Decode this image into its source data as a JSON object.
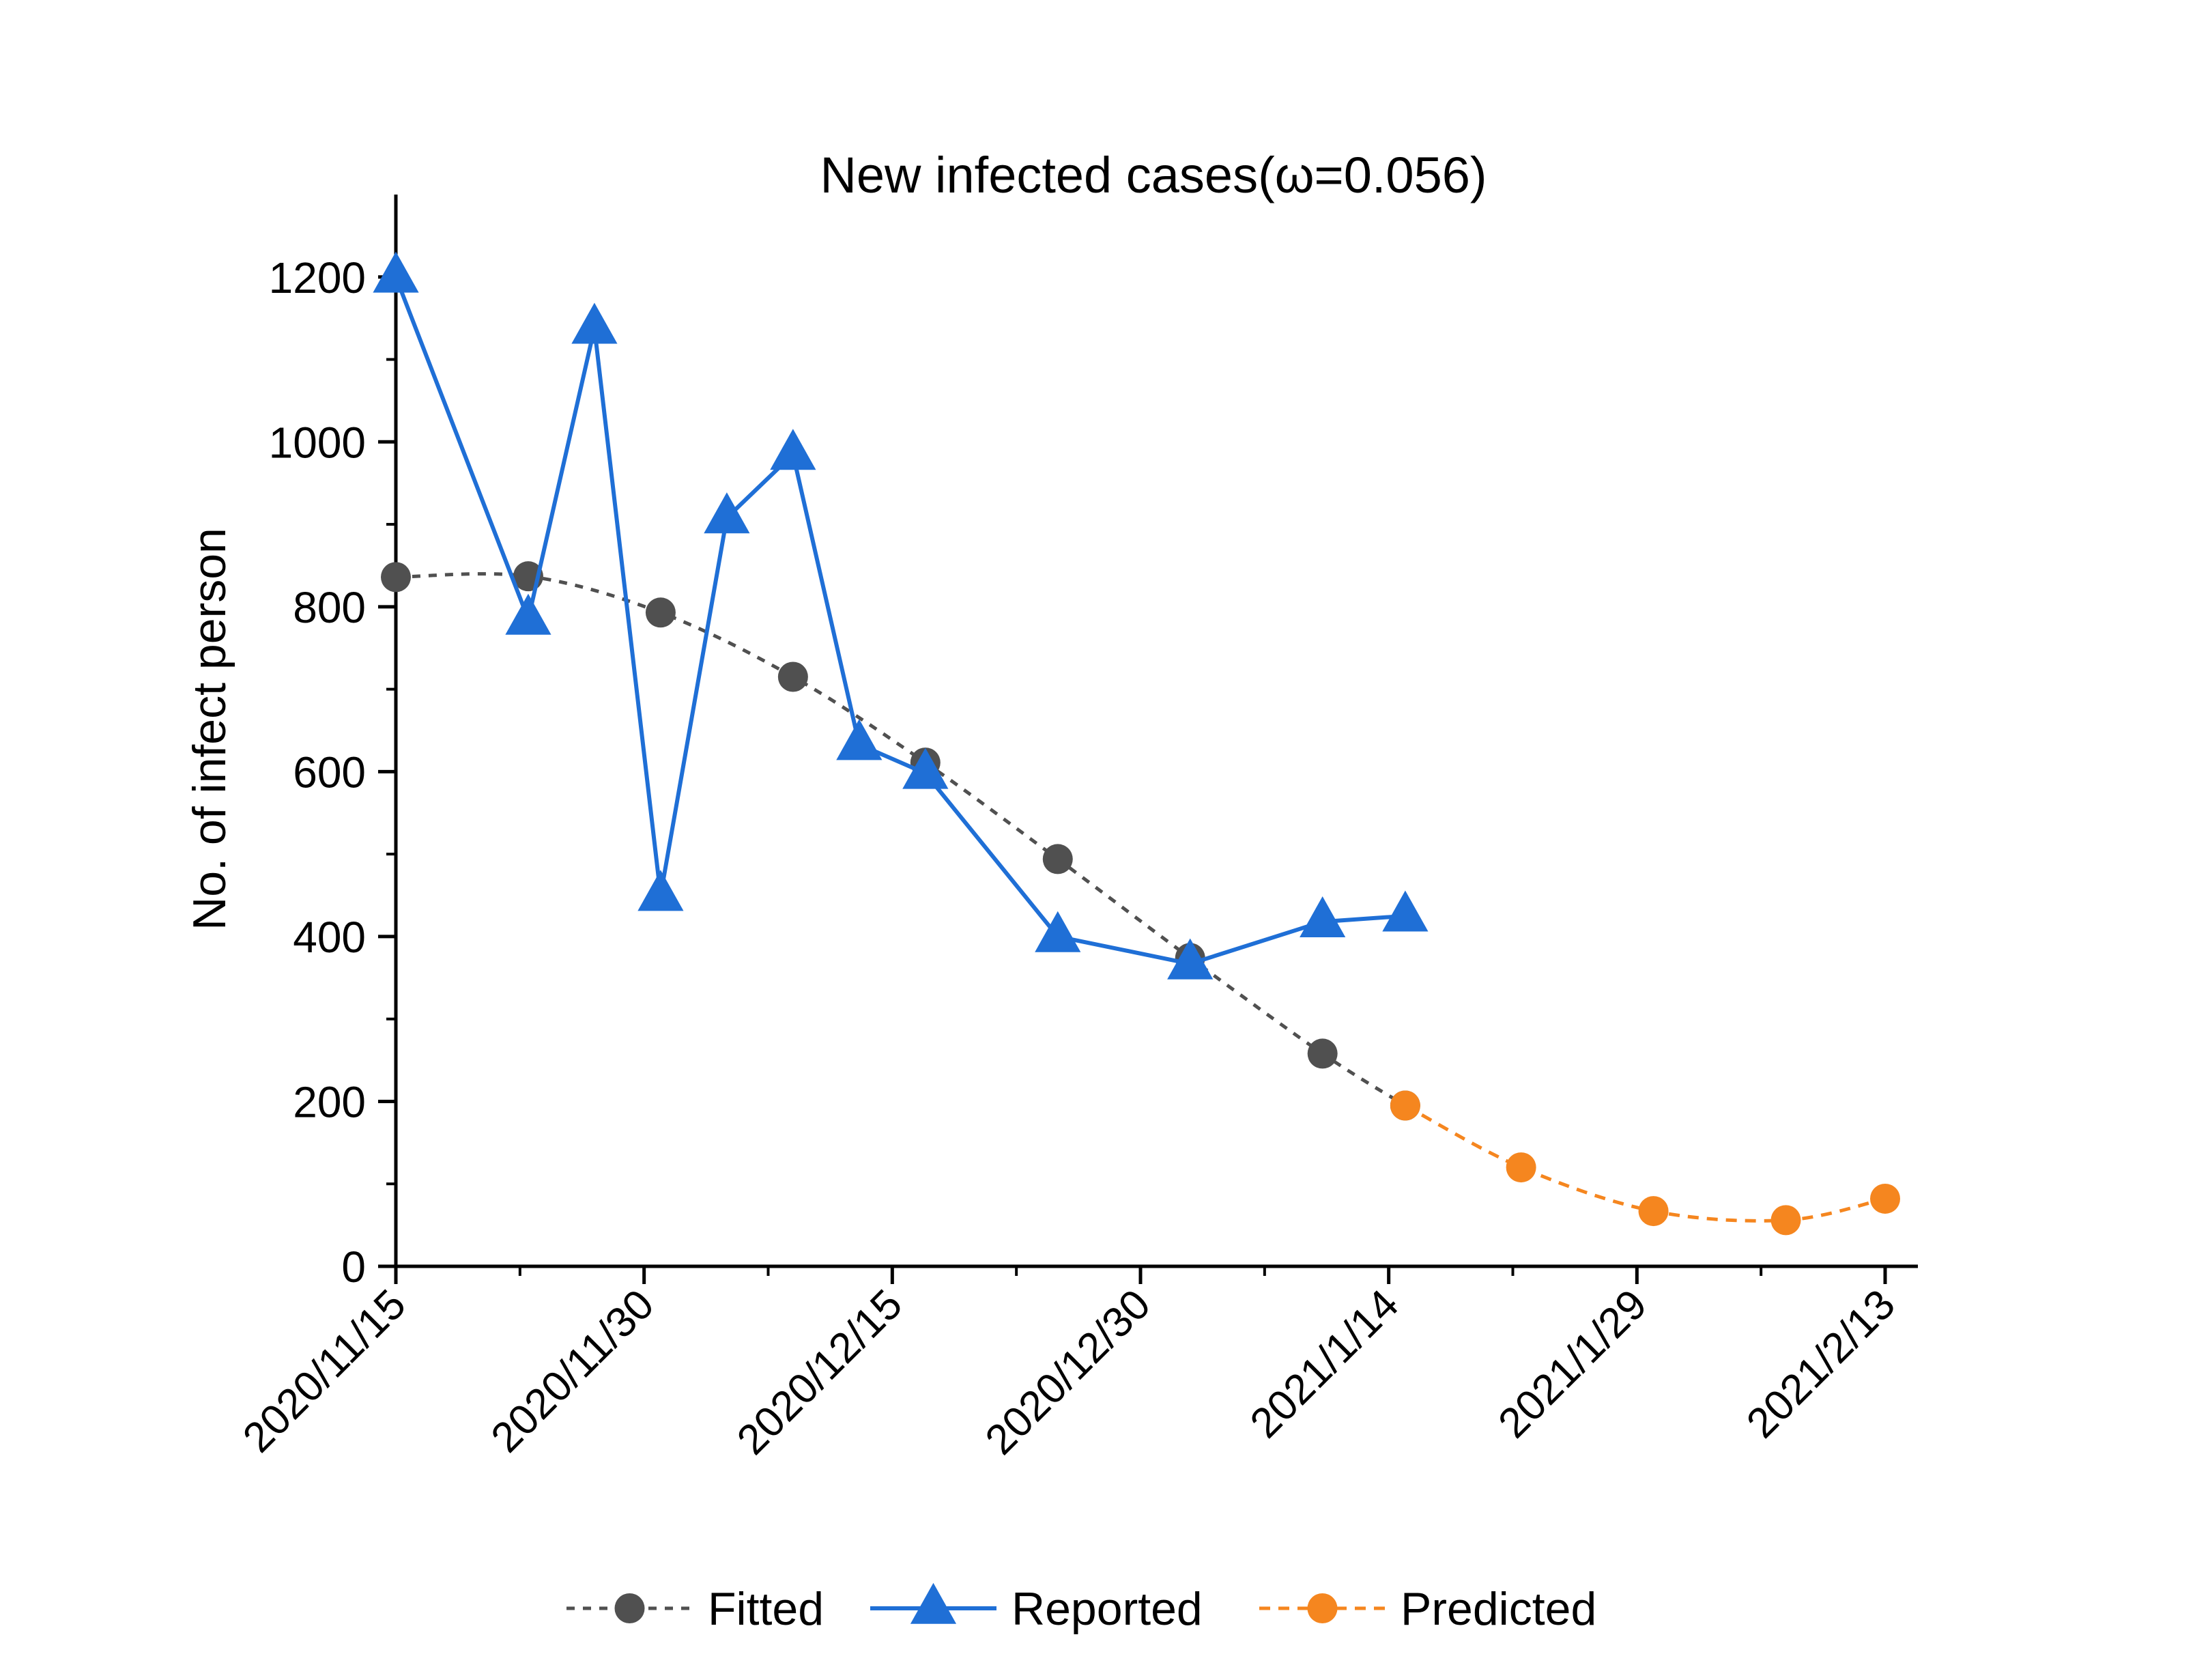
{
  "chart_data": {
    "type": "line",
    "title": "New infected cases(ω=0.056)",
    "xlabel": "",
    "ylabel": "No. of infect person",
    "x_axis": {
      "type": "date",
      "range": [
        "2020-11-15",
        "2021-02-13"
      ],
      "tick_dates": [
        "2020-11-15",
        "2020-11-30",
        "2020-12-15",
        "2020-12-30",
        "2021-01-14",
        "2021-01-29",
        "2021-02-13"
      ],
      "tick_labels": [
        "2020/11/15",
        "2020/11/30",
        "2020/12/15",
        "2020/12/30",
        "2021/1/14",
        "2021/1/29",
        "2021/2/13"
      ]
    },
    "y_axis": {
      "range": [
        0,
        1300
      ],
      "ticks": [
        0,
        200,
        400,
        600,
        800,
        1000,
        1200
      ],
      "tick_labels": [
        "0",
        "200",
        "400",
        "600",
        "800",
        "1000",
        "1200"
      ]
    },
    "grid": false,
    "legend_position": "bottom",
    "series": [
      {
        "name": "Fitted",
        "color": "#505050",
        "line": "dotted",
        "marker": "circle",
        "points": [
          {
            "x": "2020-11-15",
            "y": 836
          },
          {
            "x": "2020-11-23",
            "y": 837
          },
          {
            "x": "2020-12-01",
            "y": 793
          },
          {
            "x": "2020-12-09",
            "y": 715
          },
          {
            "x": "2020-12-17",
            "y": 611
          },
          {
            "x": "2020-12-25",
            "y": 494
          },
          {
            "x": "2021-01-02",
            "y": 374
          },
          {
            "x": "2021-01-10",
            "y": 258
          },
          {
            "x": "2021-01-15",
            "y": 195
          }
        ]
      },
      {
        "name": "Reported",
        "color": "#1f6fd6",
        "line": "solid",
        "marker": "triangle",
        "points": [
          {
            "x": "2020-11-15",
            "y": 1200
          },
          {
            "x": "2020-11-23",
            "y": 785
          },
          {
            "x": "2020-11-27",
            "y": 1138
          },
          {
            "x": "2020-12-01",
            "y": 450
          },
          {
            "x": "2020-12-05",
            "y": 908
          },
          {
            "x": "2020-12-09",
            "y": 985
          },
          {
            "x": "2020-12-13",
            "y": 633
          },
          {
            "x": "2020-12-17",
            "y": 598
          },
          {
            "x": "2020-12-25",
            "y": 400
          },
          {
            "x": "2021-01-02",
            "y": 367
          },
          {
            "x": "2021-01-10",
            "y": 418
          },
          {
            "x": "2021-01-15",
            "y": 425
          }
        ]
      },
      {
        "name": "Predicted",
        "color": "#f5861f",
        "line": "dashed",
        "marker": "circle",
        "points": [
          {
            "x": "2021-01-15",
            "y": 195
          },
          {
            "x": "2021-01-22",
            "y": 120
          },
          {
            "x": "2021-01-30",
            "y": 67
          },
          {
            "x": "2021-02-07",
            "y": 56
          },
          {
            "x": "2021-02-13",
            "y": 82
          }
        ]
      }
    ]
  }
}
